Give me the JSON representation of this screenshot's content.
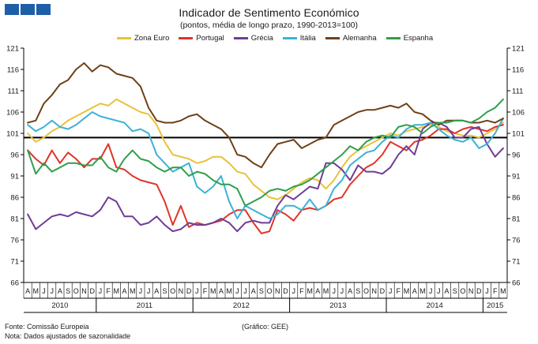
{
  "header": {
    "title": "Indicador de Sentimento Económico",
    "subtitle": "(pontos, média de longo prazo, 1990-2013=100)"
  },
  "footer": {
    "source": "Fonte: Comissão Europeia",
    "note": "Nota: Dados ajustados de sazonalidade",
    "credit": "(Gráfico:  GEE)"
  },
  "chart_data": {
    "type": "line",
    "title": "Indicador de Sentimento Económico",
    "subtitle": "(pontos, média de longo prazo, 1990-2013=100)",
    "xlabel": "",
    "ylabel": "",
    "ylim": [
      66,
      121
    ],
    "yticks": [
      66,
      71,
      76,
      81,
      86,
      91,
      96,
      101,
      106,
      111,
      116,
      121
    ],
    "grid": false,
    "legend_position": "top",
    "reference_line": 100,
    "month_labels": [
      "A",
      "M",
      "J",
      "J",
      "A",
      "S",
      "O",
      "N",
      "D",
      "J",
      "F",
      "M",
      "A",
      "M",
      "J",
      "J",
      "A",
      "S",
      "O",
      "N",
      "D",
      "J",
      "F",
      "M",
      "A",
      "M",
      "J",
      "J",
      "A",
      "S",
      "O",
      "N",
      "D",
      "J",
      "F",
      "M",
      "A",
      "M",
      "J",
      "J",
      "A",
      "S",
      "O",
      "N",
      "D",
      "J",
      "F",
      "M",
      "A",
      "M",
      "J",
      "J",
      "A",
      "S",
      "O",
      "N",
      "D",
      "J",
      "F",
      "M"
    ],
    "year_groups": [
      {
        "label": "2010",
        "start": 0,
        "end": 8
      },
      {
        "label": "2011",
        "start": 9,
        "end": 20
      },
      {
        "label": "2012",
        "start": 21,
        "end": 32
      },
      {
        "label": "2013",
        "start": 33,
        "end": 44
      },
      {
        "label": "2014",
        "start": 45,
        "end": 56
      },
      {
        "label": "2015",
        "start": 57,
        "end": 59
      }
    ],
    "series": [
      {
        "name": "Zona Euro",
        "color": "#e8c23a",
        "values": [
          101,
          99,
          100,
          101.5,
          102.5,
          104,
          105,
          106,
          107,
          108,
          107.5,
          109,
          108,
          107,
          106,
          105.5,
          103,
          99,
          96,
          95.5,
          95,
          94,
          94.5,
          95.5,
          95.5,
          94,
          92,
          91.5,
          89,
          87.5,
          86,
          85.5,
          86.5,
          88,
          89.5,
          90.5,
          90,
          88,
          90,
          93,
          95.5,
          97,
          98,
          99,
          100,
          101,
          100.5,
          101.5,
          102,
          102.5,
          103,
          102.5,
          101.5,
          101,
          100.5,
          100.5,
          100,
          101,
          102,
          103.5
        ]
      },
      {
        "name": "Portugal",
        "color": "#e03428",
        "values": [
          97,
          95,
          93.5,
          97,
          94,
          96.5,
          95,
          93,
          95,
          95,
          98.5,
          93,
          92.5,
          91,
          90,
          89.5,
          89,
          85,
          79.5,
          84,
          79,
          80,
          79.5,
          80,
          80.5,
          82,
          83,
          83,
          80,
          77.5,
          78,
          83,
          82,
          80.5,
          83,
          83.5,
          83,
          84,
          85.5,
          86,
          89,
          91,
          93,
          94,
          96,
          99,
          98,
          97,
          99,
          99.5,
          100.5,
          102,
          102,
          101,
          102,
          102.5,
          102,
          101.5,
          102.5,
          103
        ]
      },
      {
        "name": "Grécia",
        "color": "#6f3c96",
        "values": [
          82,
          78.5,
          80,
          81.5,
          82,
          81.5,
          82.5,
          82,
          81.5,
          83,
          86,
          85,
          81.5,
          81.5,
          79.5,
          80,
          81.5,
          79.5,
          78,
          78.5,
          80,
          79.5,
          79.5,
          80,
          81,
          80,
          78,
          80,
          80.5,
          80,
          80,
          84,
          86.5,
          85.5,
          87,
          88.5,
          88,
          94,
          94,
          92.5,
          90,
          93.5,
          92,
          92,
          91.5,
          93,
          96,
          98,
          96,
          102,
          103.5,
          103.5,
          102.5,
          100,
          100,
          102,
          102.5,
          98.5,
          95.5,
          97.5
        ]
      },
      {
        "name": "Itália",
        "color": "#3bb2d6",
        "values": [
          103,
          101.5,
          102.5,
          104,
          102.5,
          102,
          103,
          104.5,
          106,
          105,
          104.5,
          104,
          103.5,
          101.5,
          102,
          101,
          96,
          94,
          92,
          93,
          94,
          88.5,
          87,
          88.5,
          91,
          85,
          81,
          84,
          83,
          82,
          81,
          82,
          84,
          84,
          83,
          85.5,
          83,
          84,
          88,
          90,
          93.5,
          95,
          96.5,
          97,
          99,
          100.5,
          100,
          102,
          103,
          103,
          103.5,
          102,
          100.5,
          99.5,
          99,
          100,
          97.5,
          98.5,
          101,
          104.5
        ]
      },
      {
        "name": "Alemanha",
        "color": "#6e4116",
        "values": [
          103.5,
          104,
          108,
          110,
          112.5,
          113.5,
          116,
          117.5,
          115.5,
          117,
          116.5,
          115,
          114.5,
          114,
          112,
          107,
          104,
          103.5,
          103.5,
          104,
          105,
          105.5,
          104,
          103,
          102,
          100,
          96,
          95.5,
          94,
          93,
          96,
          98.5,
          99,
          99.5,
          97.5,
          98.5,
          99.5,
          100,
          103,
          104,
          105,
          106,
          106.5,
          106.5,
          107,
          107.5,
          107,
          108,
          106,
          105.5,
          104,
          103,
          104,
          104,
          104,
          103.5,
          103.5,
          104,
          103.5,
          104.5
        ]
      },
      {
        "name": "Espanha",
        "color": "#2f9e4a",
        "values": [
          97,
          91.5,
          94,
          92,
          93,
          94,
          94,
          93.5,
          93.5,
          95.5,
          93,
          92,
          95,
          97,
          95,
          94.5,
          93,
          92,
          93,
          93,
          91,
          92,
          91.5,
          90,
          89,
          89,
          88,
          84,
          85,
          86,
          87.5,
          88,
          87.5,
          88.5,
          89,
          90,
          91.5,
          93,
          94.5,
          96,
          98,
          97,
          99,
          100,
          100.5,
          100,
          102.5,
          103,
          102.5,
          101,
          102.5,
          103.5,
          103.5,
          104,
          104,
          103.5,
          104.5,
          106,
          107,
          109
        ]
      }
    ]
  }
}
